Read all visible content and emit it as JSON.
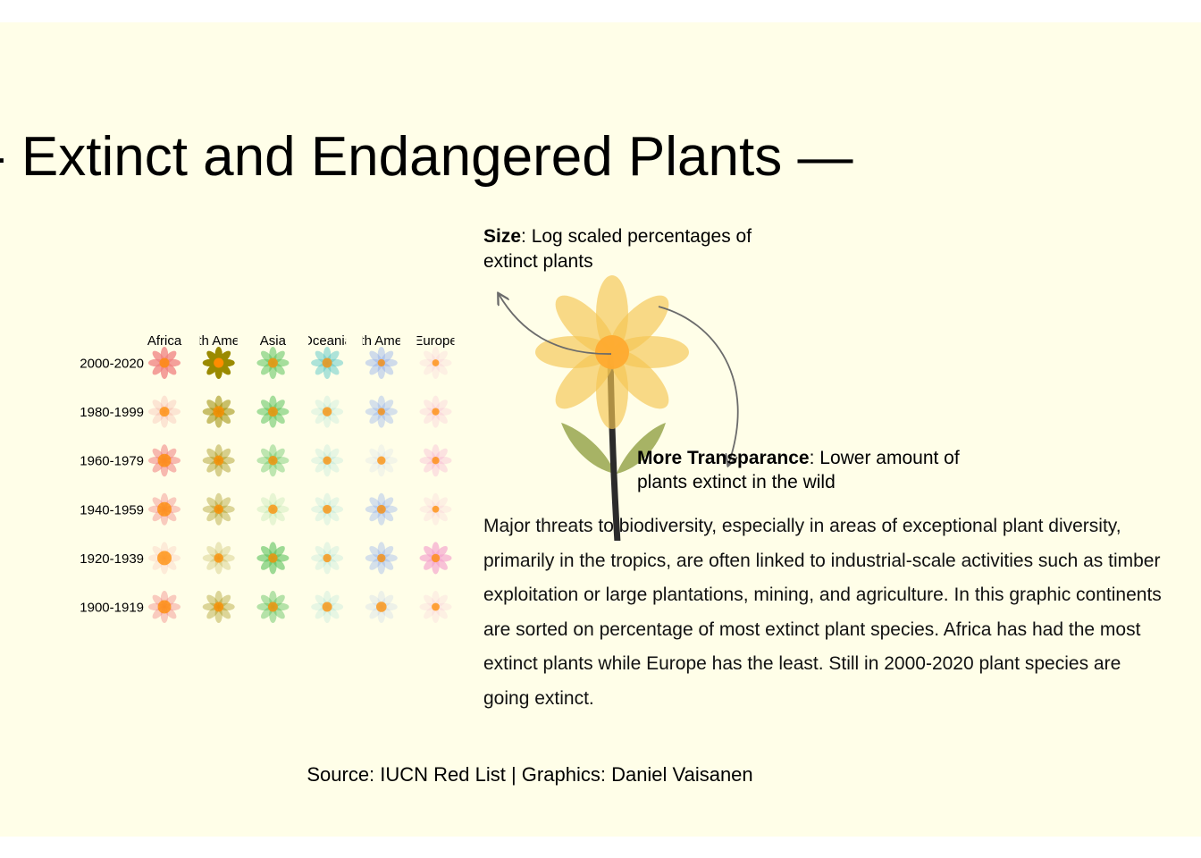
{
  "title": "- Extinct and Endangered Plants —",
  "source": "Source: IUCN Red List | Graphics: Daniel Vaisanen",
  "legend": {
    "size_label": "Size",
    "size_text": ": Log scaled percentages of extinct plants",
    "transparency_label": "More Transparance",
    "transparency_text": ": Lower amount of plants extinct in the wild",
    "petal_color": "#f5c451",
    "center_color": "#ffa82e",
    "stem_color": "#2b2b2b",
    "leaf_color": "#8a9a3a",
    "arrow_color": "#6b6b6b"
  },
  "description": "Major threats to biodiversity, especially in areas of exceptional plant diversity, primarily in the tropics, are often linked to industrial-scale activities such as timber exploitation or large plantations, mining, and agriculture. In this graphic continents are sorted on percentage of most extinct plant species. Africa has had the most extinct plants while Europe has the least. Still in 2000-2020 plant species are going extinct.",
  "chart_data": {
    "type": "glyph-grid",
    "columns": [
      "Africa",
      "th Ame",
      "Asia",
      "Oceania",
      "th Ame",
      "Europe"
    ],
    "rows": [
      "2000-2020",
      "1980-1999",
      "1960-1979",
      "1940-1959",
      "1920-1939",
      "1900-1919"
    ],
    "column_colors": [
      "#f08080",
      "#9a8a00",
      "#5cc25c",
      "#5cc8c8",
      "#88a8ee",
      "#f4a2cc"
    ],
    "center_color": "#ff8c00",
    "encoding": "size = log scaled percentage of extinct plants; opacity = amount of plants extinct in the wild",
    "center_size": [
      [
        0.55,
        0.55,
        0.55,
        0.55,
        0.3,
        0.25
      ],
      [
        0.55,
        0.7,
        0.55,
        0.5,
        0.3,
        0.3
      ],
      [
        0.9,
        0.55,
        0.5,
        0.4,
        0.4,
        0.3
      ],
      [
        1.0,
        0.5,
        0.5,
        0.45,
        0.45,
        0.25
      ],
      [
        1.0,
        0.5,
        0.5,
        0.4,
        0.4,
        0.4
      ],
      [
        0.9,
        0.55,
        0.55,
        0.55,
        0.6,
        0.35
      ]
    ],
    "opacity": [
      [
        0.75,
        1.0,
        0.55,
        0.5,
        0.4,
        0.15
      ],
      [
        0.2,
        0.55,
        0.55,
        0.15,
        0.35,
        0.2
      ],
      [
        0.55,
        0.4,
        0.4,
        0.15,
        0.1,
        0.3
      ],
      [
        0.4,
        0.35,
        0.15,
        0.15,
        0.35,
        0.15
      ],
      [
        0.15,
        0.2,
        0.6,
        0.15,
        0.35,
        0.65
      ],
      [
        0.4,
        0.35,
        0.45,
        0.15,
        0.15,
        0.15
      ]
    ]
  }
}
